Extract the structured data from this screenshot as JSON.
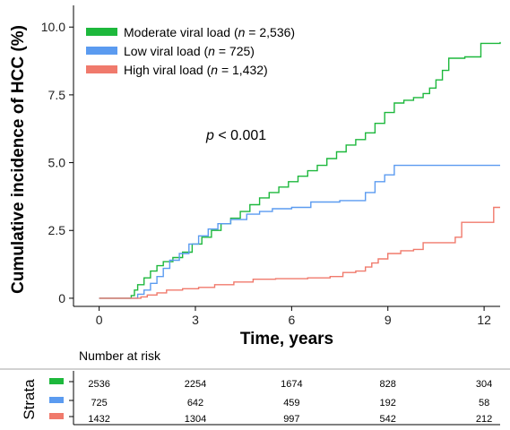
{
  "chart_data": {
    "type": "line",
    "subtype": "kaplan-meier-cumulative-incidence",
    "xlabel": "Time, years",
    "ylabel": "Cumulative incidence of HCC (%)",
    "xlim": [
      -0.8,
      12.5
    ],
    "ylim": [
      -0.3,
      10.8
    ],
    "xticks": [
      0,
      3,
      6,
      9,
      12
    ],
    "yticks": [
      0,
      2.5,
      5.0,
      7.5,
      10.0
    ],
    "xtick_labels": [
      "0",
      "3",
      "6",
      "9",
      "12"
    ],
    "ytick_labels": [
      "0",
      "2.5",
      "5.0",
      "7.5",
      "10.0"
    ],
    "annotation": {
      "text_prefix": "p",
      "text_suffix": " < 0.001"
    },
    "legend_position": "top-left",
    "series": [
      {
        "name": "Moderate viral load",
        "label_prefix": "Moderate viral load (",
        "label_n": "n",
        "label_suffix": " = 2,536)",
        "color": "#1db83c",
        "points": [
          [
            0,
            0
          ],
          [
            0.9,
            0
          ],
          [
            1.0,
            0.1
          ],
          [
            1.1,
            0.3
          ],
          [
            1.2,
            0.5
          ],
          [
            1.4,
            0.75
          ],
          [
            1.6,
            1.0
          ],
          [
            1.8,
            1.2
          ],
          [
            2.0,
            1.35
          ],
          [
            2.3,
            1.5
          ],
          [
            2.6,
            1.7
          ],
          [
            2.9,
            2.0
          ],
          [
            3.2,
            2.25
          ],
          [
            3.5,
            2.5
          ],
          [
            3.8,
            2.75
          ],
          [
            4.1,
            2.95
          ],
          [
            4.4,
            3.2
          ],
          [
            4.7,
            3.45
          ],
          [
            5.0,
            3.7
          ],
          [
            5.3,
            3.9
          ],
          [
            5.6,
            4.1
          ],
          [
            5.9,
            4.3
          ],
          [
            6.2,
            4.5
          ],
          [
            6.5,
            4.7
          ],
          [
            6.8,
            4.9
          ],
          [
            7.1,
            5.15
          ],
          [
            7.4,
            5.4
          ],
          [
            7.7,
            5.65
          ],
          [
            8.0,
            5.85
          ],
          [
            8.3,
            6.1
          ],
          [
            8.6,
            6.45
          ],
          [
            8.9,
            6.85
          ],
          [
            9.2,
            7.2
          ],
          [
            9.5,
            7.3
          ],
          [
            9.8,
            7.4
          ],
          [
            10.1,
            7.55
          ],
          [
            10.3,
            7.75
          ],
          [
            10.5,
            8.05
          ],
          [
            10.7,
            8.4
          ],
          [
            10.9,
            8.85
          ],
          [
            11.4,
            8.9
          ],
          [
            11.9,
            9.4
          ],
          [
            12.5,
            9.45
          ]
        ]
      },
      {
        "name": "Low viral load",
        "label_prefix": "Low viral load (",
        "label_n": "n",
        "label_suffix": " = 725)",
        "color": "#5b9bf0",
        "points": [
          [
            0,
            0
          ],
          [
            1.0,
            0
          ],
          [
            1.2,
            0.15
          ],
          [
            1.4,
            0.3
          ],
          [
            1.6,
            0.55
          ],
          [
            1.8,
            0.8
          ],
          [
            2.0,
            1.1
          ],
          [
            2.2,
            1.4
          ],
          [
            2.5,
            1.65
          ],
          [
            2.8,
            2.0
          ],
          [
            3.1,
            2.3
          ],
          [
            3.4,
            2.55
          ],
          [
            3.7,
            2.75
          ],
          [
            4.1,
            2.9
          ],
          [
            4.6,
            3.1
          ],
          [
            5.0,
            3.2
          ],
          [
            5.4,
            3.3
          ],
          [
            6.0,
            3.35
          ],
          [
            6.6,
            3.55
          ],
          [
            7.5,
            3.6
          ],
          [
            8.3,
            3.9
          ],
          [
            8.6,
            4.3
          ],
          [
            8.9,
            4.55
          ],
          [
            9.2,
            4.9
          ],
          [
            10.0,
            4.9
          ],
          [
            12.5,
            4.9
          ]
        ]
      },
      {
        "name": "High viral load",
        "label_prefix": "High viral load (",
        "label_n": "n",
        "label_suffix": " = 1,432)",
        "color": "#f07a6c",
        "points": [
          [
            0,
            0
          ],
          [
            1.0,
            0
          ],
          [
            1.3,
            0.05
          ],
          [
            1.5,
            0.12
          ],
          [
            1.8,
            0.2
          ],
          [
            2.1,
            0.3
          ],
          [
            2.6,
            0.35
          ],
          [
            3.1,
            0.4
          ],
          [
            3.6,
            0.5
          ],
          [
            4.2,
            0.6
          ],
          [
            4.8,
            0.7
          ],
          [
            5.5,
            0.72
          ],
          [
            6.5,
            0.75
          ],
          [
            7.2,
            0.8
          ],
          [
            7.6,
            0.95
          ],
          [
            8.0,
            1.0
          ],
          [
            8.3,
            1.15
          ],
          [
            8.5,
            1.3
          ],
          [
            8.7,
            1.45
          ],
          [
            9.0,
            1.65
          ],
          [
            9.4,
            1.75
          ],
          [
            9.8,
            1.8
          ],
          [
            10.1,
            2.05
          ],
          [
            11.1,
            2.25
          ],
          [
            11.3,
            2.8
          ],
          [
            12.3,
            3.35
          ],
          [
            12.5,
            3.35
          ]
        ]
      }
    ]
  },
  "risk_table": {
    "title": "Number at risk",
    "strata_label": "Strata",
    "times": [
      0,
      3,
      6,
      9,
      12
    ],
    "rows": [
      {
        "color": "#1db83c",
        "values": [
          "2536",
          "2254",
          "1674",
          "828",
          "304"
        ]
      },
      {
        "color": "#5b9bf0",
        "values": [
          "725",
          "642",
          "459",
          "192",
          "58"
        ]
      },
      {
        "color": "#f07a6c",
        "values": [
          "1432",
          "1304",
          "997",
          "542",
          "212"
        ]
      }
    ]
  }
}
